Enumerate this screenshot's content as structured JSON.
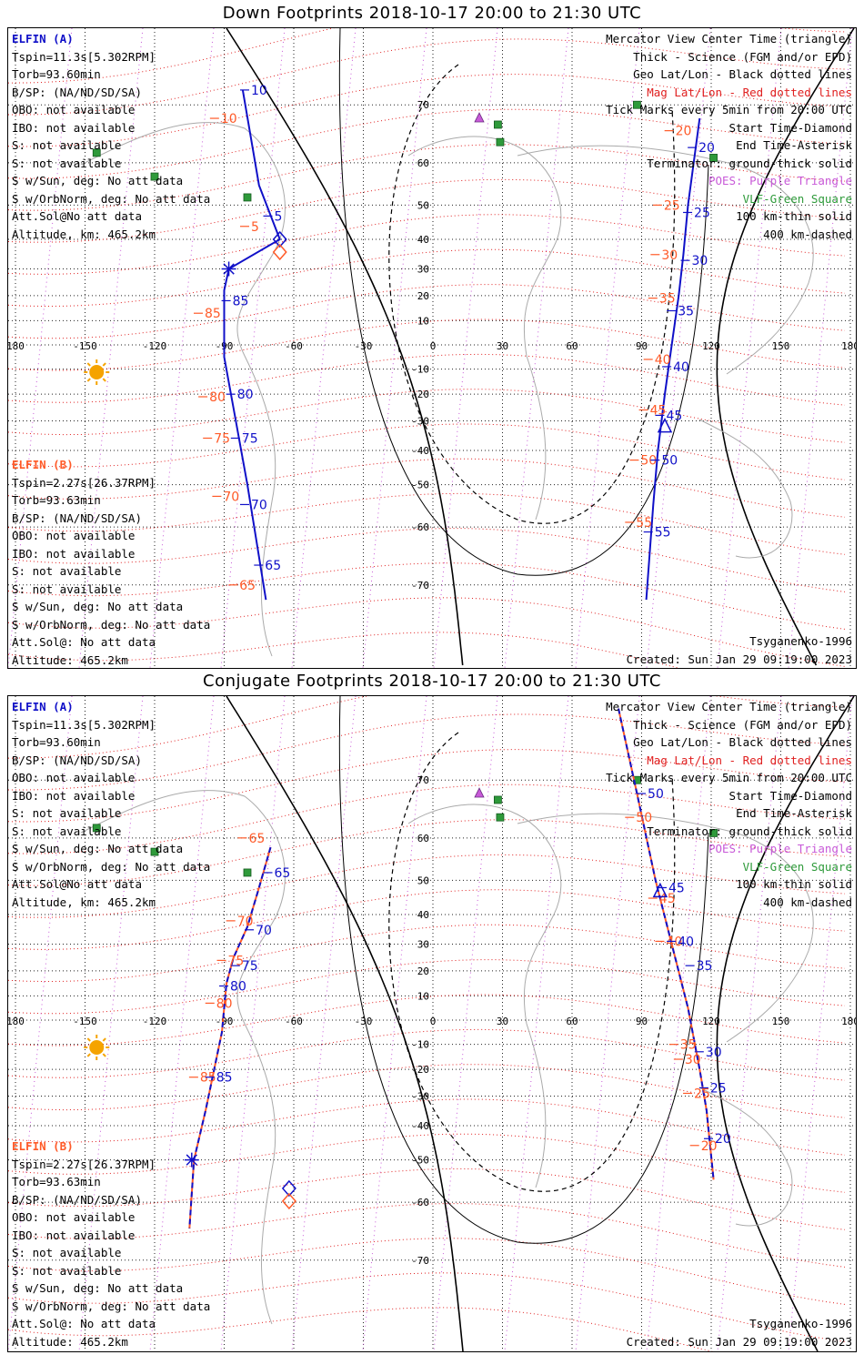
{
  "colors": {
    "elfin_a": "#1010c8",
    "elfin_b": "#ff5a28",
    "mag": "#e02020",
    "geo": "#000000",
    "poes": "#c85ad8",
    "vlf": "#2e9a3a",
    "sun": "#f5a300"
  },
  "legend": [
    "Mercator View Center Time (triangle)",
    "Thick - Science (FGM and/or EPD)",
    "Geo Lat/Lon - Black dotted lines",
    "Mag Lat/Lon - Red dotted lines",
    "Tick Marks every 5min from 20:00 UTC",
    "Start Time-Diamond",
    "End Time-Asterisk",
    "Terminator: ground-thick solid",
    "POES: Purple Triangle",
    "VLF-Green Square",
    "100 km-thin solid",
    "400 km-dashed"
  ],
  "elfin_a_info": {
    "name": "ELFIN (A)",
    "lines": [
      "Tspin=11.3s[5.302RPM]",
      "Torb=93.60min",
      "B/SP: (NA/ND/SD/SA)",
      "OBO: not available",
      "IBO: not available",
      "S: not available",
      "S: not available",
      "S w/Sun, deg: No att data",
      "S w/OrbNorm, deg: No att data",
      "Att.Sol@No att data",
      "Altitude, km: 465.2km"
    ]
  },
  "elfin_b_info": {
    "name": "ELFIN (B)",
    "lines": [
      "Tspin=2.27s[26.37RPM]",
      "Torb=93.63min",
      "B/SP: (NA/ND/SD/SA)",
      "OBO: not available",
      "IBO: not available",
      "S: not available",
      "S: not available",
      "S w/Sun, deg: No att data",
      "S w/OrbNorm, deg: No att data",
      "Att.Sol@: No att data",
      "Altitude: 465.2km"
    ]
  },
  "model": "Tsyganenko-1996",
  "created": "Created: Sun Jan 29 09:19:00 2023",
  "axis": {
    "lon_ticks": [
      "180",
      "-150",
      "-120",
      "-90",
      "-60",
      "-30",
      "0",
      "30",
      "60",
      "90",
      "120",
      "150",
      "180"
    ],
    "lat_ticks": [
      "70",
      "60",
      "50",
      "40",
      "30",
      "20",
      "10",
      "0",
      "-10",
      "-20",
      "-30",
      "-40",
      "-50",
      "-60",
      "-70"
    ]
  },
  "panels": [
    {
      "title": "Down Footprints 2018-10-17 20:00 to 21:30 UTC",
      "elfin_a": {
        "track": [
          [
            -82,
            72
          ],
          [
            -75,
            55
          ],
          [
            -66,
            40
          ],
          [
            -88,
            30
          ],
          [
            -90,
            22
          ],
          [
            -90,
            -5
          ],
          [
            -85,
            -30
          ],
          [
            -80,
            -50
          ],
          [
            -72,
            -72
          ]
        ],
        "labels": [
          {
            "t": "10",
            "lon": -80,
            "lat": 72
          },
          {
            "t": "5",
            "lon": -70,
            "lat": 47
          },
          {
            "t": "85",
            "lon": -88,
            "lat": 18
          },
          {
            "t": "80",
            "lon": -86,
            "lat": -20
          },
          {
            "t": "75",
            "lon": -84,
            "lat": -36
          },
          {
            "t": "70",
            "lon": -80,
            "lat": -55
          },
          {
            "t": "65",
            "lon": -74,
            "lat": -67
          }
        ],
        "track2": [
          [
            115,
            68
          ],
          [
            110,
            50
          ],
          [
            108,
            35
          ],
          [
            106,
            20
          ],
          [
            103,
            0
          ],
          [
            100,
            -20
          ],
          [
            97,
            -40
          ],
          [
            95,
            -55
          ],
          [
            92,
            -72
          ]
        ],
        "labels2": [
          {
            "t": "20",
            "lon": 113,
            "lat": 63
          },
          {
            "t": "25",
            "lon": 111,
            "lat": 48
          },
          {
            "t": "30",
            "lon": 110,
            "lat": 33
          },
          {
            "t": "35",
            "lon": 104,
            "lat": 14
          },
          {
            "t": "40",
            "lon": 102,
            "lat": -9
          },
          {
            "t": "45",
            "lon": 99,
            "lat": -28
          },
          {
            "t": "50",
            "lon": 97,
            "lat": -43
          },
          {
            "t": "55",
            "lon": 94,
            "lat": -61
          }
        ]
      },
      "elfin_b": {
        "labels": [
          {
            "t": "10",
            "lon": -93,
            "lat": 68
          },
          {
            "t": "5",
            "lon": -80,
            "lat": 44
          },
          {
            "t": "85",
            "lon": -100,
            "lat": 13
          },
          {
            "t": "80",
            "lon": -98,
            "lat": -21
          },
          {
            "t": "75",
            "lon": -96,
            "lat": -36
          },
          {
            "t": "70",
            "lon": -92,
            "lat": -53
          },
          {
            "t": "65",
            "lon": -85,
            "lat": -70
          }
        ],
        "labels2": [
          {
            "t": "20",
            "lon": 103,
            "lat": 66
          },
          {
            "t": "25",
            "lon": 98,
            "lat": 50
          },
          {
            "t": "30",
            "lon": 97,
            "lat": 35
          },
          {
            "t": "35",
            "lon": 96,
            "lat": 19
          },
          {
            "t": "40",
            "lon": 94,
            "lat": -6
          },
          {
            "t": "45",
            "lon": 92,
            "lat": -26
          },
          {
            "t": "50",
            "lon": 88,
            "lat": -43
          },
          {
            "t": "55",
            "lon": 86,
            "lat": -59
          }
        ]
      }
    },
    {
      "title": "Conjugate Footprints 2018-10-17 20:00 to 21:30 UTC",
      "elfin_a": {
        "track": [
          [
            -70,
            58
          ],
          [
            -75,
            48
          ],
          [
            -80,
            36
          ],
          [
            -86,
            25
          ],
          [
            -89,
            15
          ],
          [
            -91,
            -5
          ],
          [
            -98,
            -35
          ],
          [
            -103,
            -50
          ],
          [
            -105,
            -65
          ]
        ],
        "labels": [
          {
            "t": "65",
            "lon": -70,
            "lat": 52
          },
          {
            "t": "70",
            "lon": -78,
            "lat": 35
          },
          {
            "t": "75",
            "lon": -84,
            "lat": 22
          },
          {
            "t": "80",
            "lon": -89,
            "lat": 14
          },
          {
            "t": "85",
            "lon": -95,
            "lat": -23
          }
        ],
        "track2": [
          [
            80,
            78
          ],
          [
            88,
            68
          ],
          [
            96,
            50
          ],
          [
            103,
            30
          ],
          [
            110,
            5
          ],
          [
            115,
            -20
          ],
          [
            118,
            -35
          ],
          [
            121,
            -55
          ]
        ],
        "labels2": [
          {
            "t": "50",
            "lon": 91,
            "lat": 68
          },
          {
            "t": "45",
            "lon": 100,
            "lat": 48
          },
          {
            "t": "40",
            "lon": 104,
            "lat": 31
          },
          {
            "t": "35",
            "lon": 112,
            "lat": 22
          },
          {
            "t": "30",
            "lon": 116,
            "lat": -13
          },
          {
            "t": "25",
            "lon": 118,
            "lat": -27
          },
          {
            "t": "20",
            "lon": 120,
            "lat": -44
          }
        ]
      },
      "elfin_b": {
        "labels": [
          {
            "t": "65",
            "lon": -81,
            "lat": 60
          },
          {
            "t": "70",
            "lon": -86,
            "lat": 38
          },
          {
            "t": "75",
            "lon": -90,
            "lat": 24
          },
          {
            "t": "80",
            "lon": -95,
            "lat": 7
          },
          {
            "t": "85",
            "lon": -102,
            "lat": -23
          }
        ],
        "labels2": [
          {
            "t": "50",
            "lon": 86,
            "lat": 64
          },
          {
            "t": "45",
            "lon": 96,
            "lat": 45
          },
          {
            "t": "40",
            "lon": 99,
            "lat": 31
          },
          {
            "t": "35",
            "lon": 105,
            "lat": -10
          },
          {
            "t": "30",
            "lon": 107,
            "lat": -16
          },
          {
            "t": "25",
            "lon": 111,
            "lat": -29
          },
          {
            "t": "20",
            "lon": 114,
            "lat": -46
          }
        ]
      }
    }
  ]
}
